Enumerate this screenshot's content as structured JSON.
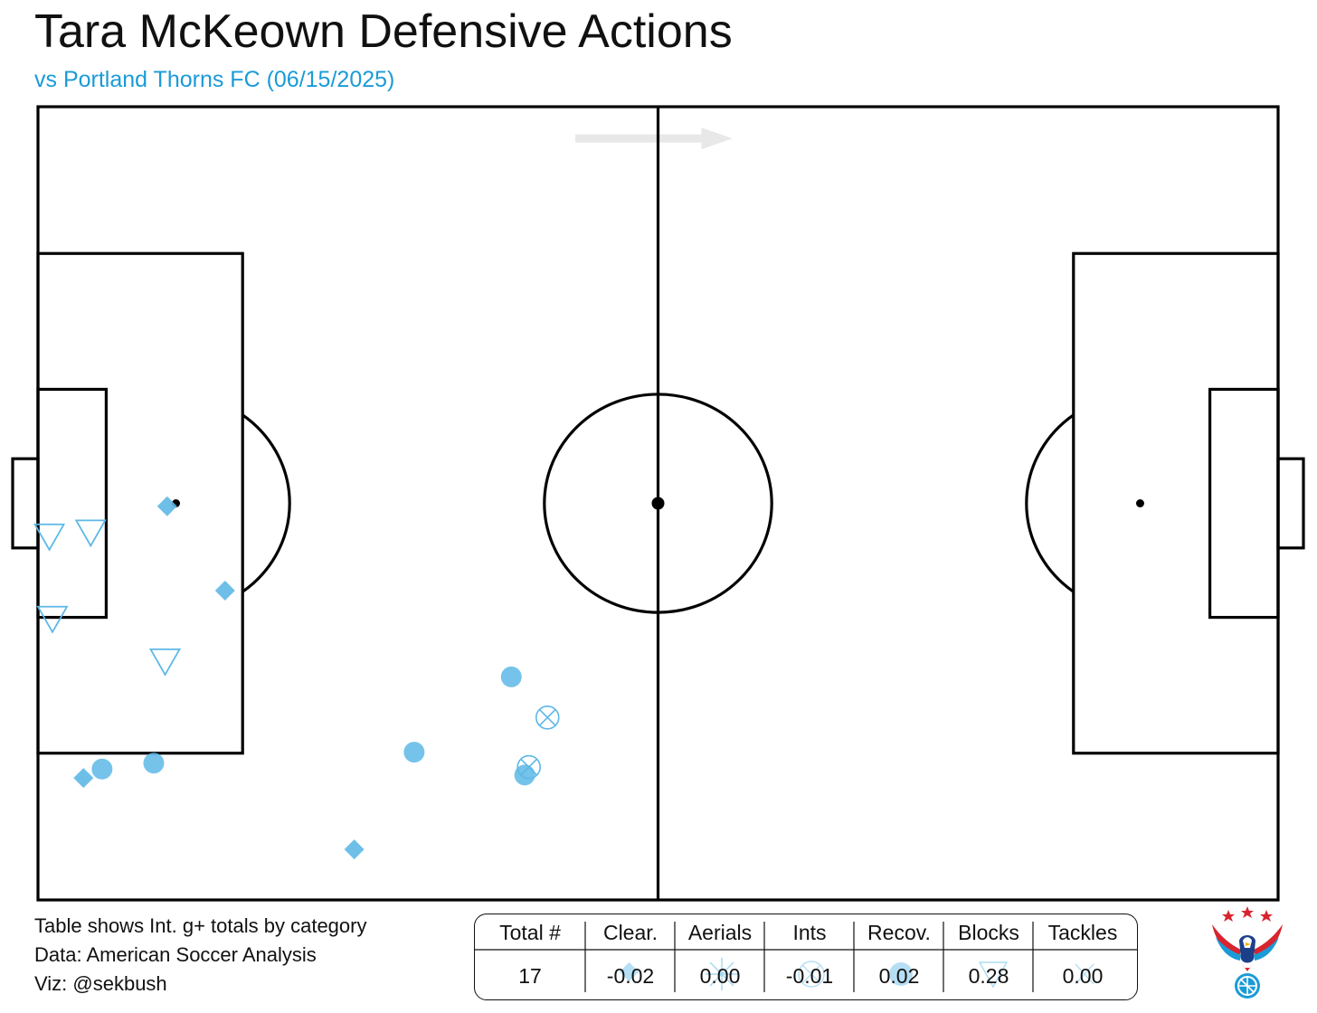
{
  "header": {
    "title": "Tara McKeown Defensive Actions",
    "subtitle": "vs Portland Thorns FC (06/15/2025)"
  },
  "notes": [
    "Table shows Int. g+ totals by category",
    "Data: American Soccer Analysis",
    "Viz: @sekbush"
  ],
  "colors": {
    "accent": "#1a9bd7",
    "marker": "#5db8e6",
    "line": "#000000",
    "arrow": "#e8e8e8"
  },
  "chart_data": {
    "type": "scatter",
    "pitch": {
      "length": 120,
      "width": 80,
      "attack_direction": "left-to-right"
    },
    "series": [
      {
        "marker": "circle",
        "points": [
          [
            6.2,
            66.8
          ],
          [
            11.2,
            66.2
          ],
          [
            36.4,
            65.1
          ],
          [
            45.8,
            57.5
          ],
          [
            47.1,
            67.4
          ]
        ]
      },
      {
        "marker": "circle-x",
        "points": [
          [
            49.3,
            61.6
          ],
          [
            47.5,
            66.6
          ]
        ]
      },
      {
        "marker": "diamond",
        "points": [
          [
            12.5,
            40.3
          ],
          [
            18.1,
            48.8
          ],
          [
            4.4,
            67.7
          ],
          [
            30.6,
            74.9
          ]
        ]
      },
      {
        "marker": "triangle-down",
        "points": [
          [
            1.1,
            43.4
          ],
          [
            5.1,
            43.0
          ],
          [
            1.4,
            51.7
          ],
          [
            12.3,
            56.0
          ]
        ]
      }
    ],
    "table": {
      "headers": [
        "Total #",
        "Clear.",
        "Aerials",
        "Ints",
        "Recov.",
        "Blocks",
        "Tackles"
      ],
      "values": [
        "17",
        "-0.02",
        "0.00",
        "-0.01",
        "0.02",
        "0.28",
        "0.00"
      ],
      "icons": [
        "",
        "diamond-icon",
        "burst-icon",
        "circle-x-icon",
        "circle-icon",
        "triangle-down-icon",
        "x-icon"
      ]
    }
  }
}
